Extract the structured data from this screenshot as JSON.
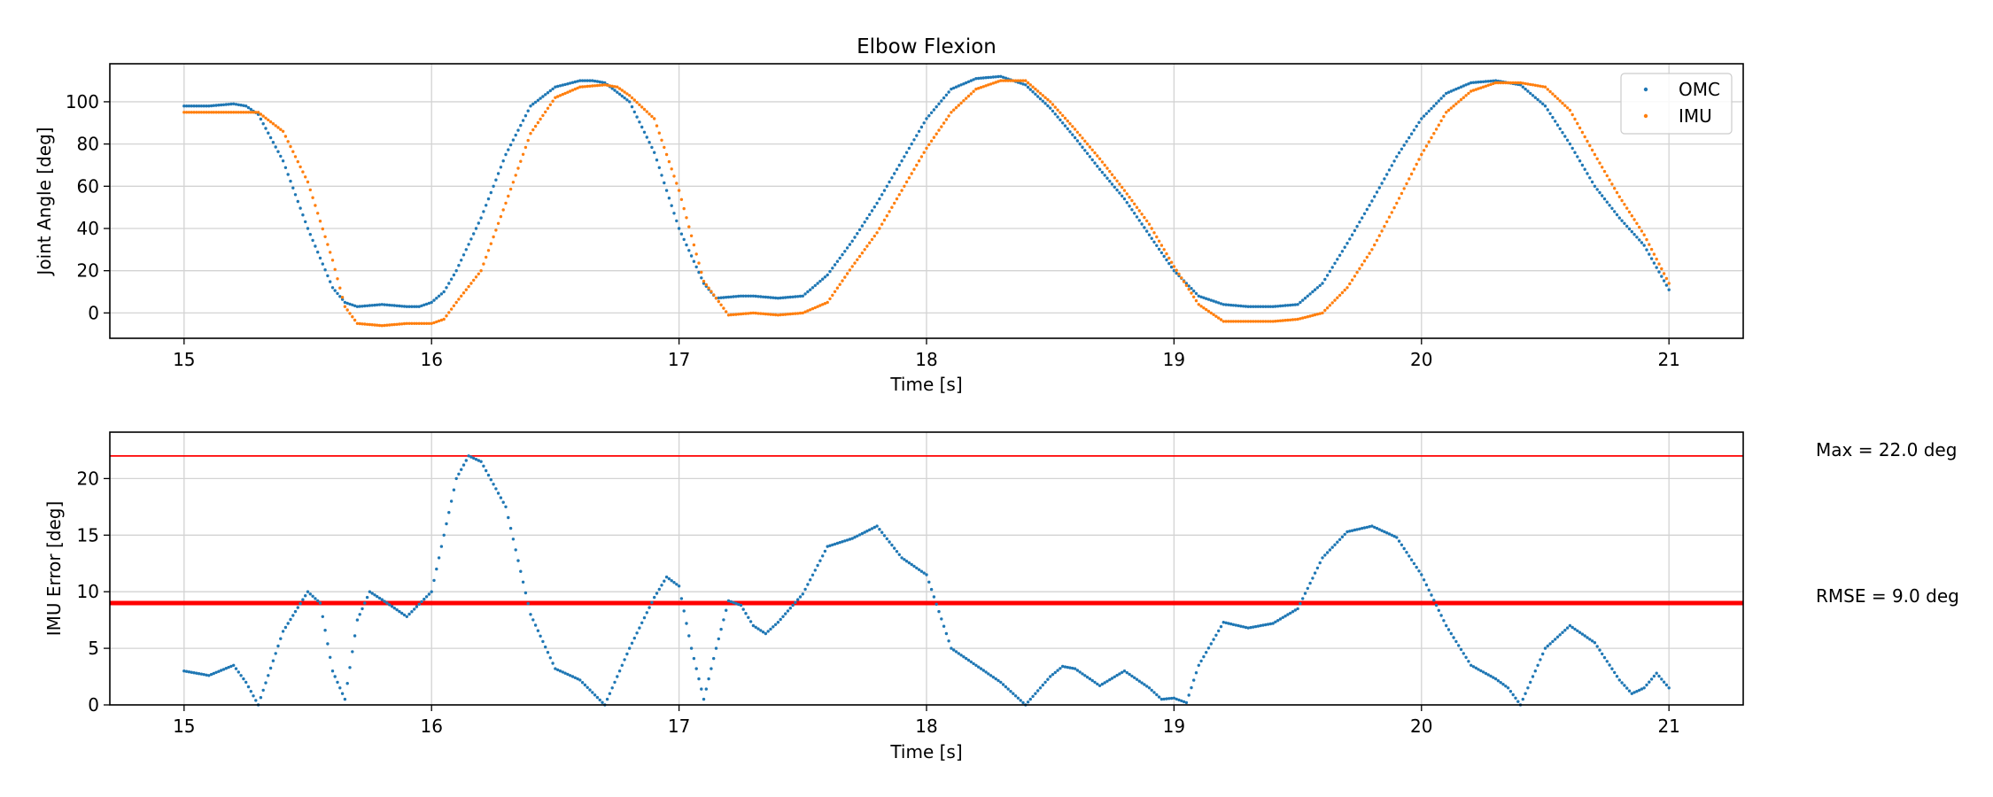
{
  "chart_data": [
    {
      "type": "scatter",
      "title": "Elbow Flexion",
      "xlabel": "Time [s]",
      "ylabel": "Joint Angle [deg]",
      "xlim": [
        14.7,
        21.3
      ],
      "ylim": [
        -12,
        118
      ],
      "xticks": [
        15,
        16,
        17,
        18,
        19,
        20,
        21
      ],
      "yticks": [
        0,
        20,
        40,
        60,
        80,
        100
      ],
      "grid": true,
      "legend_position": "top-right",
      "series": [
        {
          "name": "OMC",
          "color": "#1f77b4",
          "points": [
            [
              15.0,
              98
            ],
            [
              15.1,
              98
            ],
            [
              15.2,
              99
            ],
            [
              15.25,
              98
            ],
            [
              15.3,
              94
            ],
            [
              15.4,
              72
            ],
            [
              15.5,
              40
            ],
            [
              15.6,
              12
            ],
            [
              15.65,
              5
            ],
            [
              15.7,
              3
            ],
            [
              15.8,
              4
            ],
            [
              15.9,
              3
            ],
            [
              15.95,
              3
            ],
            [
              16.0,
              5
            ],
            [
              16.05,
              10
            ],
            [
              16.1,
              20
            ],
            [
              16.2,
              45
            ],
            [
              16.3,
              75
            ],
            [
              16.4,
              98
            ],
            [
              16.5,
              107
            ],
            [
              16.6,
              110
            ],
            [
              16.65,
              110
            ],
            [
              16.7,
              109
            ],
            [
              16.8,
              100
            ],
            [
              16.9,
              76
            ],
            [
              17.0,
              40
            ],
            [
              17.1,
              14
            ],
            [
              17.15,
              7
            ],
            [
              17.25,
              8
            ],
            [
              17.3,
              8
            ],
            [
              17.4,
              7
            ],
            [
              17.5,
              8
            ],
            [
              17.6,
              18
            ],
            [
              17.7,
              34
            ],
            [
              17.8,
              52
            ],
            [
              17.9,
              72
            ],
            [
              18.0,
              92
            ],
            [
              18.1,
              106
            ],
            [
              18.2,
              111
            ],
            [
              18.3,
              112
            ],
            [
              18.4,
              108
            ],
            [
              18.5,
              97
            ],
            [
              18.6,
              83
            ],
            [
              18.7,
              68
            ],
            [
              18.8,
              54
            ],
            [
              18.9,
              37
            ],
            [
              19.0,
              20
            ],
            [
              19.1,
              8
            ],
            [
              19.2,
              4
            ],
            [
              19.3,
              3
            ],
            [
              19.4,
              3
            ],
            [
              19.5,
              4
            ],
            [
              19.6,
              14
            ],
            [
              19.7,
              33
            ],
            [
              19.8,
              53
            ],
            [
              19.9,
              74
            ],
            [
              20.0,
              92
            ],
            [
              20.1,
              104
            ],
            [
              20.2,
              109
            ],
            [
              20.3,
              110
            ],
            [
              20.4,
              108
            ],
            [
              20.5,
              98
            ],
            [
              20.6,
              80
            ],
            [
              20.7,
              60
            ],
            [
              20.8,
              45
            ],
            [
              20.9,
              32
            ],
            [
              21.0,
              11
            ]
          ]
        },
        {
          "name": "IMU",
          "color": "#ff7f0e",
          "points": [
            [
              15.0,
              95
            ],
            [
              15.1,
              95
            ],
            [
              15.2,
              95
            ],
            [
              15.3,
              95
            ],
            [
              15.4,
              86
            ],
            [
              15.5,
              62
            ],
            [
              15.6,
              25
            ],
            [
              15.65,
              3
            ],
            [
              15.7,
              -5
            ],
            [
              15.8,
              -6
            ],
            [
              15.9,
              -5
            ],
            [
              16.0,
              -5
            ],
            [
              16.05,
              -3
            ],
            [
              16.1,
              5
            ],
            [
              16.2,
              20
            ],
            [
              16.3,
              52
            ],
            [
              16.4,
              85
            ],
            [
              16.5,
              102
            ],
            [
              16.6,
              107
            ],
            [
              16.7,
              108
            ],
            [
              16.75,
              107
            ],
            [
              16.8,
              103
            ],
            [
              16.9,
              92
            ],
            [
              17.0,
              58
            ],
            [
              17.1,
              15
            ],
            [
              17.2,
              -1
            ],
            [
              17.3,
              0
            ],
            [
              17.4,
              -1
            ],
            [
              17.5,
              0
            ],
            [
              17.6,
              5
            ],
            [
              17.7,
              22
            ],
            [
              17.8,
              38
            ],
            [
              17.9,
              58
            ],
            [
              18.0,
              78
            ],
            [
              18.1,
              95
            ],
            [
              18.2,
              106
            ],
            [
              18.3,
              110
            ],
            [
              18.4,
              110
            ],
            [
              18.5,
              100
            ],
            [
              18.6,
              87
            ],
            [
              18.7,
              73
            ],
            [
              18.8,
              58
            ],
            [
              18.9,
              42
            ],
            [
              19.0,
              22
            ],
            [
              19.1,
              4
            ],
            [
              19.2,
              -4
            ],
            [
              19.3,
              -4
            ],
            [
              19.4,
              -4
            ],
            [
              19.5,
              -3
            ],
            [
              19.6,
              0
            ],
            [
              19.7,
              12
            ],
            [
              19.8,
              30
            ],
            [
              19.9,
              52
            ],
            [
              20.0,
              75
            ],
            [
              20.1,
              95
            ],
            [
              20.2,
              105
            ],
            [
              20.3,
              109
            ],
            [
              20.4,
              109
            ],
            [
              20.5,
              107
            ],
            [
              20.6,
              96
            ],
            [
              20.7,
              75
            ],
            [
              20.8,
              55
            ],
            [
              20.9,
              37
            ],
            [
              21.0,
              14
            ]
          ]
        }
      ]
    },
    {
      "type": "scatter",
      "title": "",
      "xlabel": "Time [s]",
      "ylabel": "IMU Error [deg]",
      "xlim": [
        14.7,
        21.3
      ],
      "ylim": [
        0,
        24.1
      ],
      "xticks": [
        15,
        16,
        17,
        18,
        19,
        20,
        21
      ],
      "yticks": [
        0,
        5,
        10,
        15,
        20
      ],
      "grid": true,
      "series": [
        {
          "color": "#1f77b4",
          "points": [
            [
              15.0,
              3.0
            ],
            [
              15.1,
              2.6
            ],
            [
              15.2,
              3.5
            ],
            [
              15.25,
              2.0
            ],
            [
              15.3,
              0.0
            ],
            [
              15.4,
              6.5
            ],
            [
              15.5,
              10.0
            ],
            [
              15.55,
              9.0
            ],
            [
              15.6,
              3.0
            ],
            [
              15.65,
              0.5
            ],
            [
              15.7,
              7.5
            ],
            [
              15.75,
              10.0
            ],
            [
              15.8,
              9.3
            ],
            [
              15.9,
              7.8
            ],
            [
              16.0,
              10.0
            ],
            [
              16.05,
              15.0
            ],
            [
              16.1,
              20.0
            ],
            [
              16.15,
              22.0
            ],
            [
              16.2,
              21.5
            ],
            [
              16.3,
              17.5
            ],
            [
              16.4,
              8.0
            ],
            [
              16.5,
              3.2
            ],
            [
              16.6,
              2.2
            ],
            [
              16.7,
              0.0
            ],
            [
              16.8,
              5.0
            ],
            [
              16.9,
              9.5
            ],
            [
              16.95,
              11.3
            ],
            [
              17.0,
              10.5
            ],
            [
              17.05,
              5.0
            ],
            [
              17.1,
              0.5
            ],
            [
              17.15,
              5.0
            ],
            [
              17.2,
              9.2
            ],
            [
              17.25,
              8.8
            ],
            [
              17.3,
              7.0
            ],
            [
              17.35,
              6.3
            ],
            [
              17.4,
              7.3
            ],
            [
              17.5,
              9.8
            ],
            [
              17.6,
              14.0
            ],
            [
              17.7,
              14.7
            ],
            [
              17.8,
              15.8
            ],
            [
              17.9,
              13.0
            ],
            [
              18.0,
              11.5
            ],
            [
              18.1,
              5.0
            ],
            [
              18.2,
              3.5
            ],
            [
              18.3,
              2.0
            ],
            [
              18.4,
              0.0
            ],
            [
              18.5,
              2.5
            ],
            [
              18.55,
              3.4
            ],
            [
              18.6,
              3.2
            ],
            [
              18.7,
              1.7
            ],
            [
              18.8,
              3.0
            ],
            [
              18.9,
              1.5
            ],
            [
              18.95,
              0.5
            ],
            [
              19.0,
              0.6
            ],
            [
              19.05,
              0.2
            ],
            [
              19.1,
              3.5
            ],
            [
              19.2,
              7.3
            ],
            [
              19.3,
              6.8
            ],
            [
              19.4,
              7.2
            ],
            [
              19.5,
              8.5
            ],
            [
              19.6,
              13.0
            ],
            [
              19.7,
              15.3
            ],
            [
              19.8,
              15.8
            ],
            [
              19.9,
              14.8
            ],
            [
              20.0,
              11.5
            ],
            [
              20.1,
              7.0
            ],
            [
              20.2,
              3.5
            ],
            [
              20.3,
              2.3
            ],
            [
              20.35,
              1.5
            ],
            [
              20.4,
              0.0
            ],
            [
              20.5,
              5.0
            ],
            [
              20.6,
              7.0
            ],
            [
              20.7,
              5.5
            ],
            [
              20.8,
              2.2
            ],
            [
              20.85,
              1.0
            ],
            [
              20.9,
              1.5
            ],
            [
              20.95,
              2.8
            ],
            [
              21.0,
              1.5
            ]
          ]
        }
      ],
      "reference_lines": [
        {
          "value": 22.0,
          "color": "#ff0000",
          "width": "thin",
          "label": "Max = 22.0 deg"
        },
        {
          "value": 9.0,
          "color": "#ff0000",
          "width": "thick",
          "label": "RMSE = 9.0 deg"
        }
      ]
    }
  ]
}
